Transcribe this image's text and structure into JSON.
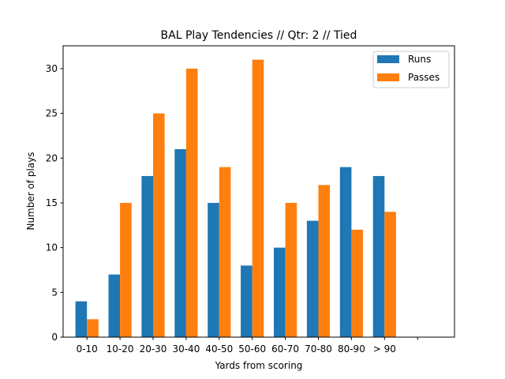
{
  "chart_data": {
    "type": "bar",
    "title": "BAL Play Tendencies // Qtr: 2 // Tied",
    "xlabel": "Yards from scoring",
    "ylabel": "Number of plays",
    "categories": [
      "0-10",
      "10-20",
      "20-30",
      "30-40",
      "40-50",
      "50-60",
      "60-70",
      "70-80",
      "80-90",
      "> 90"
    ],
    "series": [
      {
        "name": "Runs",
        "color": "#1f77b4",
        "values": [
          4,
          7,
          18,
          21,
          15,
          8,
          10,
          13,
          19,
          18
        ]
      },
      {
        "name": "Passes",
        "color": "#ff7f0e",
        "values": [
          2,
          15,
          25,
          30,
          19,
          31,
          15,
          17,
          12,
          14
        ]
      }
    ],
    "extra_tick_labels": [
      ""
    ],
    "y_ticks": [
      0,
      5,
      10,
      15,
      20,
      25,
      30
    ],
    "ylim": [
      0,
      32.55
    ],
    "grid": false,
    "legend_position": "top-right"
  }
}
